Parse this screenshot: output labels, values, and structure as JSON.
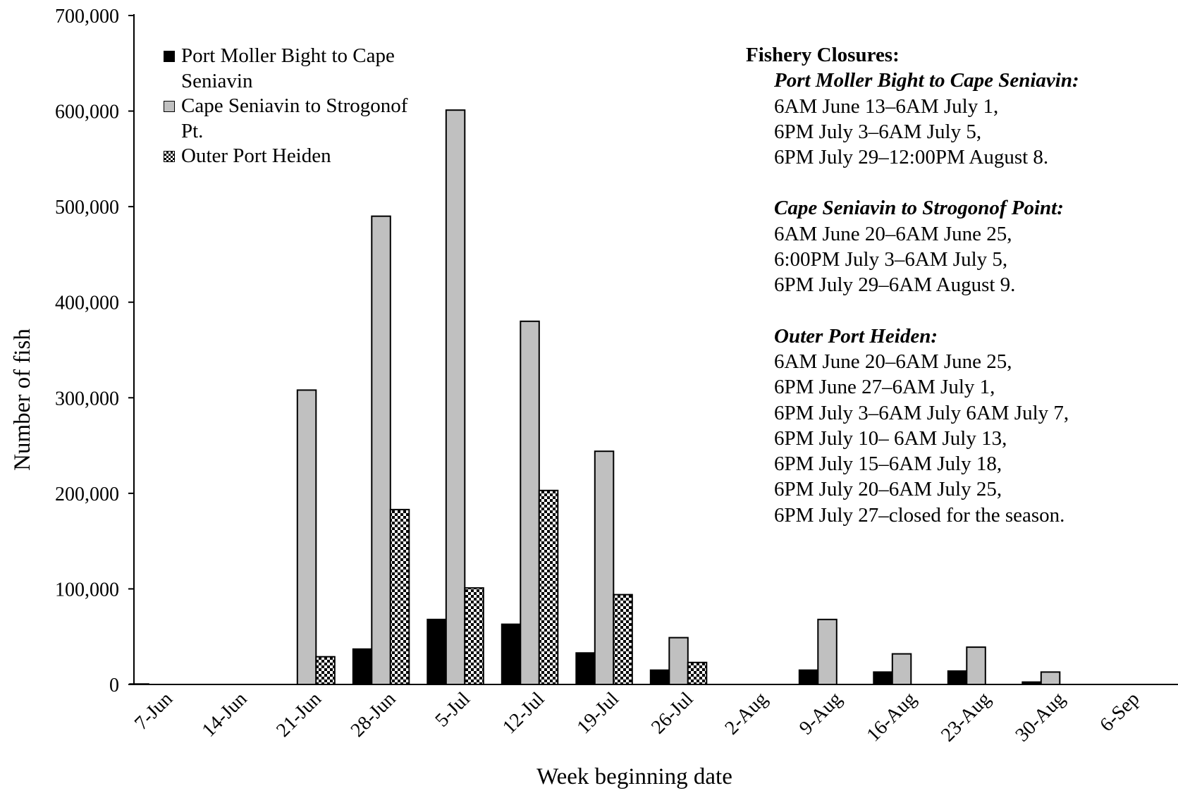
{
  "chart_data": {
    "type": "bar",
    "title": "",
    "xlabel": "Week beginning date",
    "ylabel": "Number of fish",
    "ylim": [
      0,
      700000
    ],
    "yticks": [
      0,
      100000,
      200000,
      300000,
      400000,
      500000,
      600000,
      700000
    ],
    "ytick_labels": [
      "0",
      "100,000",
      "200,000",
      "300,000",
      "400,000",
      "500,000",
      "600,000",
      "700,000"
    ],
    "categories": [
      "7-Jun",
      "14-Jun",
      "21-Jun",
      "28-Jun",
      "5-Jul",
      "12-Jul",
      "19-Jul",
      "26-Jul",
      "2-Aug",
      "9-Aug",
      "16-Aug",
      "23-Aug",
      "30-Aug",
      "6-Sep"
    ],
    "series": [
      {
        "name": "Port Moller Bight to Cape Seniavin",
        "fill": "#000000",
        "values": [
          500,
          0,
          0,
          37000,
          68000,
          63000,
          33000,
          15000,
          0,
          15000,
          13000,
          14000,
          2500,
          0
        ]
      },
      {
        "name": "Cape Seniavin to Strogonof Pt.",
        "fill": "#c0c0c0",
        "values": [
          0,
          0,
          308000,
          490000,
          601000,
          380000,
          244000,
          49000,
          0,
          68000,
          32000,
          39000,
          13000,
          0
        ]
      },
      {
        "name": "Outer Port Heiden",
        "fill": "checker",
        "values": [
          0,
          0,
          29000,
          183000,
          101000,
          203000,
          94000,
          23000,
          0,
          0,
          0,
          0,
          0,
          0
        ]
      }
    ],
    "legend": "top-left",
    "grid": false
  },
  "legend": {
    "line1a": "Port Moller Bight to Cape",
    "line1b": "Seniavin",
    "line2a": "Cape Seniavin to Strogonof",
    "line2b": "Pt.",
    "line3": "Outer Port Heiden"
  },
  "annotation": {
    "title": "Fishery Closures:",
    "sections": [
      {
        "heading": "Port Moller Bight to Cape Seniavin:",
        "lines": [
          "6AM June 13–6AM July 1,",
          "6PM July 3–6AM July 5,",
          "6PM July 29–12:00PM August 8."
        ]
      },
      {
        "heading": "Cape Seniavin to Strogonof Point:",
        "lines": [
          "6AM June 20–6AM June 25,",
          "6:00PM July 3–6AM July 5,",
          "6PM July 29–6AM August 9."
        ]
      },
      {
        "heading": "Outer Port Heiden:",
        "lines": [
          "6AM June 20–6AM June 25,",
          "6PM June 27–6AM July 1,",
          "6PM July 3–6AM July 6AM July 7,",
          "6PM July 10– 6AM July 13,",
          "6PM July 15–6AM July 18,",
          "6PM July 20–6AM July 25,",
          "6PM July 27–closed for the season."
        ]
      }
    ]
  }
}
